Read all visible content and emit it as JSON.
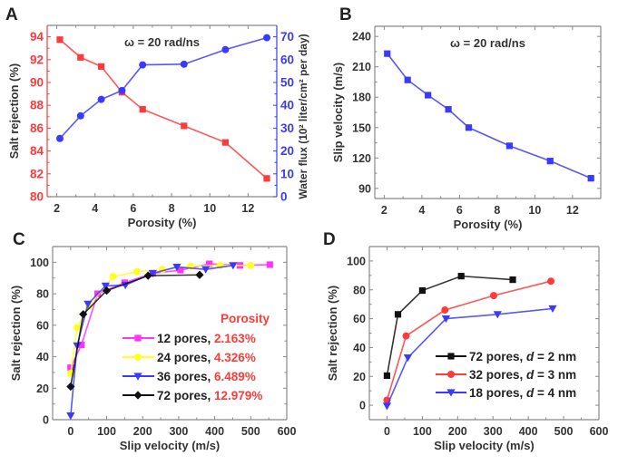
{
  "figure": {
    "panels": [
      "A",
      "B",
      "C",
      "D"
    ]
  },
  "colors": {
    "red": "#ff3a3a",
    "blue": "#3a3aff",
    "magenta": "#ff33ff",
    "yellow": "#ffff22",
    "black": "#111111",
    "frame": "#888888",
    "text": "#333333"
  },
  "chart_data": [
    {
      "panel": "A",
      "type": "line",
      "annotation": "ω = 20 rad/ns",
      "xlabel": "Porosity (%)",
      "ylabel": "Salt rejection (%)",
      "y2label": "Water flux (10² liter/cm² per day)",
      "xlim": [
        1.5,
        13.5
      ],
      "ylim": [
        80,
        95
      ],
      "y2lim": [
        0,
        75
      ],
      "xticks": [
        2,
        4,
        6,
        8,
        10,
        12
      ],
      "yticks": [
        80,
        82,
        84,
        86,
        88,
        90,
        92,
        94
      ],
      "y2ticks": [
        0,
        10,
        20,
        30,
        40,
        50,
        60,
        70
      ],
      "x": [
        2.163,
        3.245,
        4.326,
        5.408,
        6.489,
        8.652,
        10.815,
        12.979
      ],
      "series": [
        {
          "name": "Salt rejection",
          "axis": "left",
          "color": "red",
          "marker": "square",
          "values": [
            93.75,
            92.2,
            91.4,
            89.15,
            87.65,
            86.2,
            84.75,
            81.6
          ]
        },
        {
          "name": "Water flux",
          "axis": "right",
          "color": "blue",
          "marker": "circle",
          "values": [
            25.5,
            35.4,
            42.6,
            46.5,
            57.7,
            58.0,
            64.4,
            69.6
          ]
        }
      ]
    },
    {
      "panel": "B",
      "type": "line",
      "annotation": "ω = 20 rad/ns",
      "xlabel": "Porosity (%)",
      "ylabel": "Slip velocity (m/s)",
      "xlim": [
        1.5,
        13.5
      ],
      "ylim": [
        80,
        250
      ],
      "xticks": [
        2,
        4,
        6,
        8,
        10,
        12
      ],
      "yticks": [
        90,
        120,
        150,
        180,
        210,
        240
      ],
      "x": [
        2.163,
        3.245,
        4.326,
        5.408,
        6.489,
        8.652,
        10.815,
        12.979
      ],
      "series": [
        {
          "name": "Slip velocity",
          "color": "blue",
          "marker": "square",
          "values": [
            223,
            197,
            182,
            168,
            150,
            132,
            117,
            100
          ]
        }
      ]
    },
    {
      "panel": "C",
      "type": "line",
      "xlabel": "Slip velocity (m/s)",
      "ylabel": "Salt rejection (%)",
      "xlim": [
        -50,
        600
      ],
      "ylim": [
        0,
        110
      ],
      "xticks": [
        0,
        100,
        200,
        300,
        400,
        500,
        600
      ],
      "yticks": [
        0,
        20,
        40,
        60,
        80,
        100
      ],
      "legend_title": "Porosity",
      "legend_position": "center-right",
      "series": [
        {
          "name": "12 pores, ",
          "porosity": "2.163%",
          "color": "magenta",
          "marker": "square",
          "x": [
            0,
            30,
            75,
            150,
            228,
            305,
            385,
            470,
            553
          ],
          "y": [
            33,
            47.5,
            80,
            87,
            93,
            95,
            99,
            98,
            98.5
          ]
        },
        {
          "name": "24 pores, ",
          "porosity": "4.326%",
          "color": "yellow",
          "marker": "circle",
          "x": [
            0,
            18,
            50,
            118,
            184,
            255,
            333,
            415,
            500
          ],
          "y": [
            29.5,
            58.5,
            72,
            91,
            94,
            95.5,
            97.5,
            98,
            98
          ]
        },
        {
          "name": "36 pores, ",
          "porosity": "6.489%",
          "color": "blue",
          "marker": "triangle-down",
          "x": [
            0,
            18,
            48,
            97,
            152,
            228,
            295,
            375,
            451
          ],
          "y": [
            2.5,
            47,
            73.5,
            85,
            85.5,
            93,
            97,
            95.5,
            98
          ]
        },
        {
          "name": "72 pores, ",
          "porosity": "12.979%",
          "color": "black",
          "marker": "diamond",
          "x": [
            0,
            35,
            100,
            215,
            358
          ],
          "y": [
            21,
            67,
            82,
            91.5,
            92
          ]
        }
      ]
    },
    {
      "panel": "D",
      "type": "line",
      "xlabel": "Slip velocity (m/s)",
      "ylabel": "Salt rejection (%)",
      "xlim": [
        -50,
        600
      ],
      "ylim": [
        -10,
        110
      ],
      "xticks": [
        0,
        100,
        200,
        300,
        400,
        500,
        600
      ],
      "yticks": [
        0,
        20,
        40,
        60,
        80,
        100
      ],
      "legend_position": "center-right",
      "series": [
        {
          "name_prefix": "72 pores, ",
          "d_label": "d",
          "name_suffix": " = 2 nm",
          "color": "black",
          "marker": "square",
          "x": [
            0,
            31,
            100,
            210,
            356
          ],
          "y": [
            20.5,
            63,
            79.5,
            89.5,
            87
          ]
        },
        {
          "name_prefix": "32 pores, ",
          "d_label": "d",
          "name_suffix": " = 3 nm",
          "color": "red",
          "marker": "circle",
          "x": [
            0,
            54,
            164,
            302,
            464
          ],
          "y": [
            3.5,
            48,
            66,
            76,
            86
          ]
        },
        {
          "name_prefix": "18 pores, ",
          "d_label": "d",
          "name_suffix": " = 4 nm",
          "color": "blue",
          "marker": "triangle-down",
          "x": [
            0,
            59,
            167,
            313,
            469
          ],
          "y": [
            -0.5,
            33,
            60,
            63,
            67
          ]
        }
      ]
    }
  ]
}
